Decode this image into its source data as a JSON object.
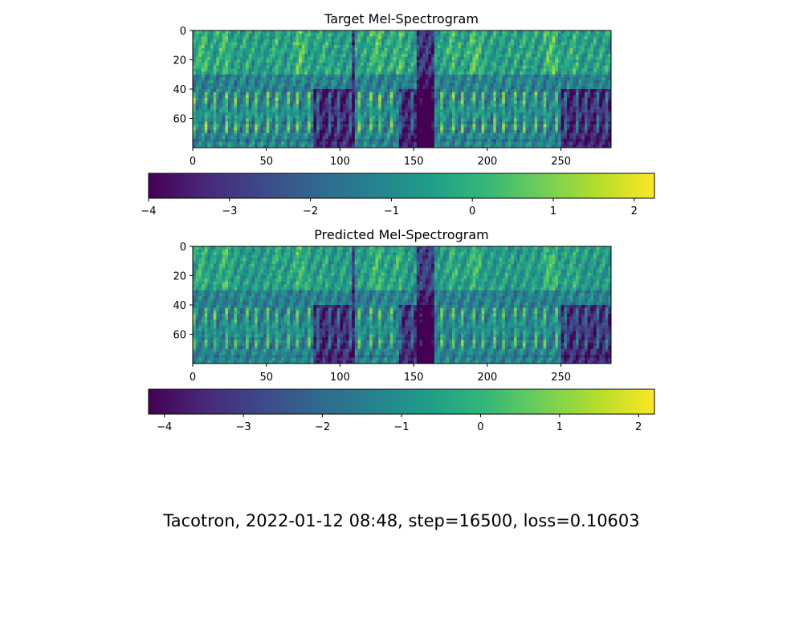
{
  "figure": {
    "caption": "Tacotron, 2022-01-12 08:48, step=16500, loss=0.10603"
  },
  "colormap": {
    "name": "viridis",
    "stops": [
      "#440154",
      "#482878",
      "#3e4989",
      "#31688e",
      "#26828e",
      "#1f9e89",
      "#35b779",
      "#6ece58",
      "#b5de2b",
      "#fde725"
    ]
  },
  "chart_data": [
    {
      "type": "heatmap",
      "title": "Target Mel-Spectrogram",
      "xlim": [
        0,
        284
      ],
      "ylim": [
        0,
        80
      ],
      "y_inverted": true,
      "xticks": [
        0,
        50,
        100,
        150,
        200,
        250
      ],
      "yticks": [
        0,
        20,
        40,
        60
      ],
      "colorbar": {
        "range": [
          -4,
          2.25
        ],
        "ticks": [
          -4,
          -3,
          -2,
          -1,
          0,
          1,
          2
        ]
      }
    },
    {
      "type": "heatmap",
      "title": "Predicted Mel-Spectrogram",
      "xlim": [
        0,
        284
      ],
      "ylim": [
        0,
        80
      ],
      "y_inverted": true,
      "xticks": [
        0,
        50,
        100,
        150,
        200,
        250
      ],
      "yticks": [
        0,
        20,
        40,
        60
      ],
      "colorbar": {
        "range": [
          -4.2,
          2.2
        ],
        "ticks": [
          -4,
          -3,
          -2,
          -1,
          0,
          1,
          2
        ]
      }
    }
  ]
}
